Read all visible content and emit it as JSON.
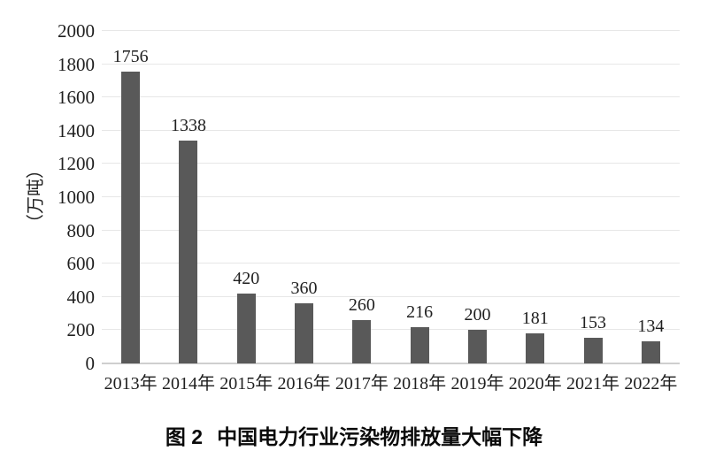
{
  "page": {
    "background_color": "#ffffff",
    "text_color": "#1f1f1f"
  },
  "chart_data": {
    "type": "bar",
    "title": "图2  中国电力行业污染物排放量大幅下降",
    "categories": [
      "2013年",
      "2014年",
      "2015年",
      "2016年",
      "2017年",
      "2018年",
      "2019年",
      "2020年",
      "2021年",
      "2022年"
    ],
    "values": [
      1756,
      1338,
      420,
      360,
      260,
      216,
      200,
      181,
      153,
      134
    ],
    "xlabel": "",
    "ylabel": "（万吨）",
    "ylim": [
      0,
      2000
    ],
    "ytick_interval": 200,
    "yticks": [
      0,
      200,
      400,
      600,
      800,
      1000,
      1200,
      1400,
      1600,
      1800,
      2000
    ],
    "grid": true,
    "legend": "none",
    "bar_color": "#595959",
    "gridline_color": "#e7e7e7",
    "axis_line_color": "#cfcfcf"
  },
  "caption": {
    "label": "图 2",
    "text": "中国电力行业污染物排放量大幅下降"
  }
}
